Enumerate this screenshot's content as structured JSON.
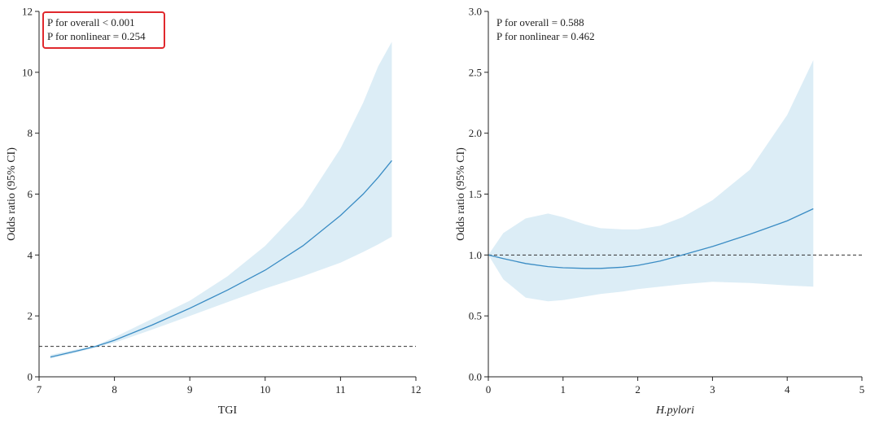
{
  "colors": {
    "line": "#3a8cc4",
    "band": "#dcedf6",
    "reference": "#333333",
    "annotation_box": "#e0282d"
  },
  "chart_data": [
    {
      "type": "line",
      "xlabel": "TGI",
      "ylabel": "Odds ratio (95% CI)",
      "xlim": [
        7,
        12
      ],
      "ylim": [
        0,
        12
      ],
      "xticks": [
        7,
        8,
        9,
        10,
        11,
        12
      ],
      "yticks": [
        0,
        2,
        4,
        6,
        8,
        10,
        12
      ],
      "ytick_labels": [
        "0",
        "2",
        "4",
        "6",
        "8",
        "10",
        "12"
      ],
      "reference_line": 1,
      "annotations": [
        "P for overall < 0.001",
        "P for nonlinear = 0.254"
      ],
      "annotation_boxed": true,
      "series": [
        {
          "x": [
            7.15,
            7.5,
            7.75,
            8.0,
            8.5,
            9.0,
            9.5,
            10.0,
            10.5,
            11.0,
            11.3,
            11.5,
            11.68
          ],
          "y": [
            0.65,
            0.85,
            1.0,
            1.2,
            1.7,
            2.25,
            2.85,
            3.5,
            4.3,
            5.3,
            6.0,
            6.55,
            7.1
          ],
          "lower": [
            0.6,
            0.8,
            0.97,
            1.12,
            1.55,
            2.0,
            2.45,
            2.9,
            3.3,
            3.75,
            4.1,
            4.35,
            4.6
          ],
          "upper": [
            0.72,
            0.9,
            1.03,
            1.3,
            1.9,
            2.5,
            3.3,
            4.3,
            5.6,
            7.5,
            9.0,
            10.2,
            11.0
          ]
        }
      ]
    },
    {
      "type": "line",
      "xlabel": "H.pylori",
      "xlabel_italic": true,
      "ylabel": "Odds ratio (95% CI)",
      "xlim": [
        0,
        5
      ],
      "ylim": [
        0,
        3
      ],
      "xticks": [
        0,
        1,
        2,
        3,
        4,
        5
      ],
      "yticks": [
        0,
        0.5,
        1,
        1.5,
        2,
        2.5,
        3
      ],
      "ytick_labels": [
        "0.0",
        "0.5",
        "1.0",
        "1.5",
        "2.0",
        "2.5",
        "3.0"
      ],
      "reference_line": 1,
      "annotations": [
        "P for overall = 0.588",
        "P for nonlinear = 0.462"
      ],
      "annotation_boxed": false,
      "series": [
        {
          "x": [
            0.0,
            0.2,
            0.5,
            0.8,
            1.0,
            1.3,
            1.5,
            1.8,
            2.0,
            2.3,
            2.6,
            3.0,
            3.5,
            4.0,
            4.35
          ],
          "y": [
            1.0,
            0.97,
            0.93,
            0.905,
            0.895,
            0.89,
            0.89,
            0.9,
            0.915,
            0.95,
            1.0,
            1.07,
            1.17,
            1.28,
            1.38
          ],
          "lower": [
            1.0,
            0.8,
            0.65,
            0.62,
            0.63,
            0.66,
            0.68,
            0.7,
            0.72,
            0.74,
            0.76,
            0.78,
            0.77,
            0.75,
            0.74
          ],
          "upper": [
            1.0,
            1.18,
            1.3,
            1.34,
            1.31,
            1.25,
            1.22,
            1.21,
            1.21,
            1.24,
            1.31,
            1.45,
            1.7,
            2.15,
            2.6
          ]
        }
      ]
    }
  ]
}
